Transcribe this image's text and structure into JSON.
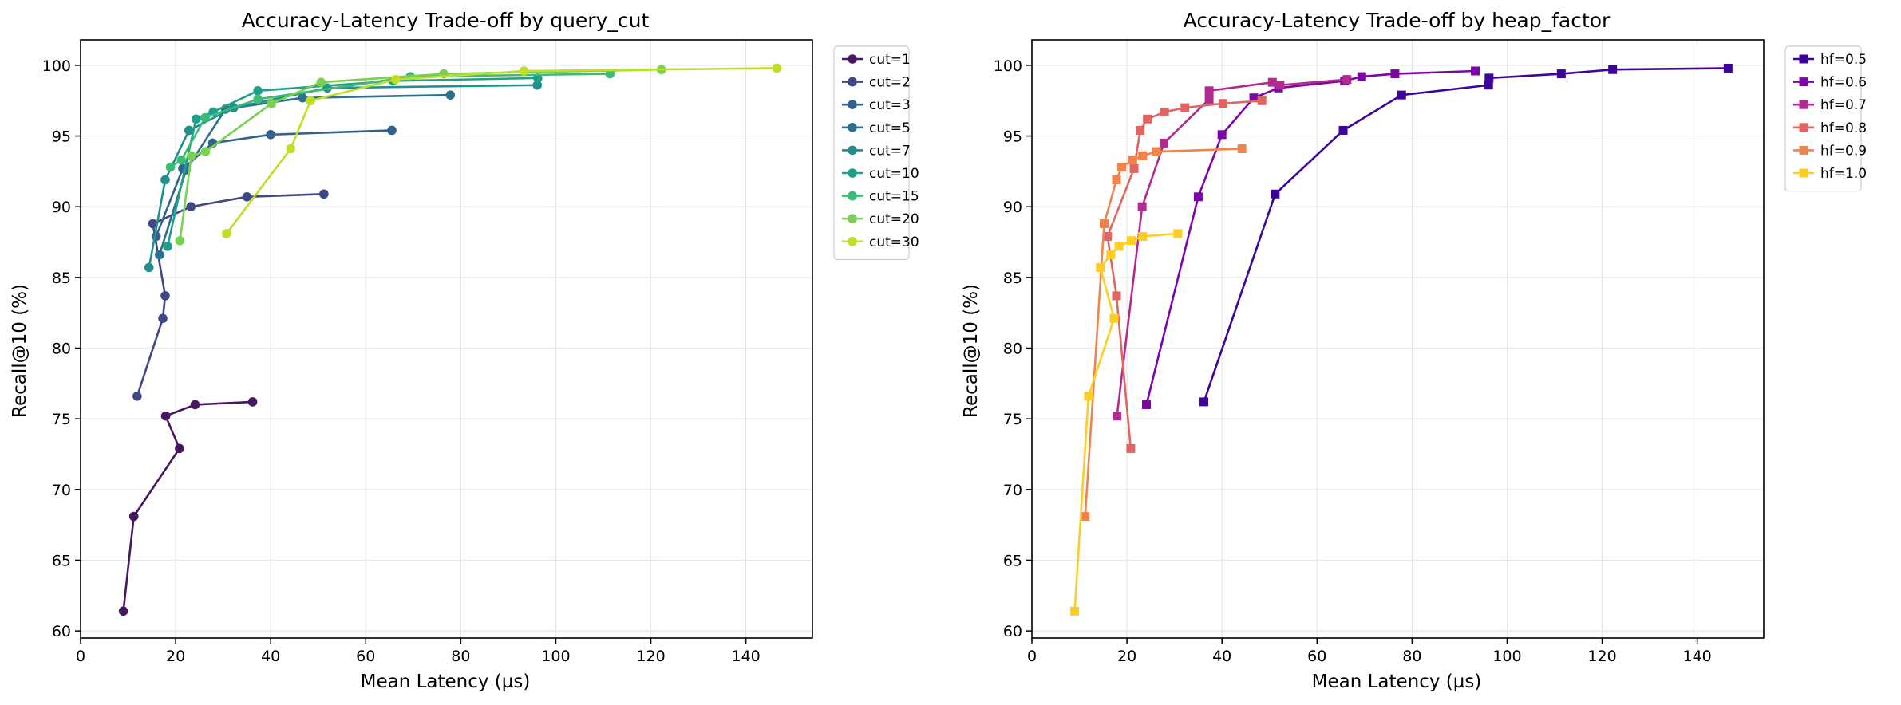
{
  "chart_data": [
    {
      "type": "line",
      "title": "Accuracy-Latency Trade-off by query_cut",
      "xlabel": "Mean Latency (µs)",
      "ylabel": "Recall@10 (%)",
      "xlim": [
        0,
        154
      ],
      "ylim": [
        59.5,
        101.8
      ],
      "xticks": [
        0,
        20,
        40,
        60,
        80,
        100,
        120,
        140
      ],
      "yticks": [
        60,
        65,
        70,
        75,
        80,
        85,
        90,
        95,
        100
      ],
      "grid": true,
      "legend_position": "outside-top-right",
      "marker": "circle",
      "series": [
        {
          "name": "cut=1",
          "color": "#46185f",
          "points": [
            [
              9,
              61.4
            ],
            [
              11.2,
              68.1
            ],
            [
              20.8,
              72.9
            ],
            [
              17.9,
              75.2
            ],
            [
              24.1,
              76.0
            ],
            [
              36.2,
              76.2
            ]
          ]
        },
        {
          "name": "cut=2",
          "color": "#404787",
          "points": [
            [
              11.9,
              76.6
            ],
            [
              17.3,
              82.1
            ],
            [
              17.8,
              83.7
            ],
            [
              15.2,
              88.8
            ],
            [
              23.2,
              90.0
            ],
            [
              35,
              90.7
            ],
            [
              51.2,
              90.9
            ]
          ]
        },
        {
          "name": "cut=3",
          "color": "#34608d",
          "points": [
            [
              15.9,
              87.9
            ],
            [
              21.5,
              92.7
            ],
            [
              27.8,
              94.5
            ],
            [
              40,
              95.1
            ],
            [
              65.5,
              95.4
            ]
          ]
        },
        {
          "name": "cut=5",
          "color": "#2d708e",
          "points": [
            [
              16.6,
              86.6
            ],
            [
              22.2,
              92.6
            ],
            [
              30.5,
              96.9
            ],
            [
              46.7,
              97.7
            ],
            [
              77.8,
              97.9
            ]
          ]
        },
        {
          "name": "cut=7",
          "color": "#21908d",
          "points": [
            [
              14.4,
              85.7
            ],
            [
              17.8,
              91.9
            ],
            [
              22.8,
              95.4
            ],
            [
              32.2,
              97.0
            ],
            [
              51.9,
              98.4
            ],
            [
              96.1,
              98.6
            ]
          ]
        },
        {
          "name": "cut=10",
          "color": "#1fa088",
          "points": [
            [
              18.3,
              87.2
            ],
            [
              24.3,
              96.2
            ],
            [
              27.9,
              96.7
            ],
            [
              37.3,
              98.2
            ],
            [
              65.8,
              98.9
            ],
            [
              96.2,
              99.1
            ]
          ]
        },
        {
          "name": "cut=15",
          "color": "#3bbb75",
          "points": [
            [
              18.9,
              92.8
            ],
            [
              21.2,
              93.3
            ],
            [
              26.2,
              96.3
            ],
            [
              37.3,
              97.6
            ],
            [
              69.4,
              99.2
            ],
            [
              111.4,
              99.4
            ]
          ]
        },
        {
          "name": "cut=20",
          "color": "#7ad151",
          "points": [
            [
              20.9,
              87.6
            ],
            [
              23.3,
              93.6
            ],
            [
              26.3,
              93.9
            ],
            [
              40.2,
              97.3
            ],
            [
              50.6,
              98.8
            ],
            [
              76.4,
              99.4
            ],
            [
              122.2,
              99.7
            ]
          ]
        },
        {
          "name": "cut=30",
          "color": "#bddf26",
          "points": [
            [
              30.7,
              88.1
            ],
            [
              44.2,
              94.1
            ],
            [
              48.4,
              97.5
            ],
            [
              66.3,
              99.0
            ],
            [
              93.3,
              99.6
            ],
            [
              146.5,
              99.8
            ]
          ]
        }
      ]
    },
    {
      "type": "line",
      "title": "Accuracy-Latency Trade-off by heap_factor",
      "xlabel": "Mean Latency (µs)",
      "ylabel": "Recall@10 (%)",
      "xlim": [
        0,
        154
      ],
      "ylim": [
        59.5,
        101.8
      ],
      "xticks": [
        0,
        20,
        40,
        60,
        80,
        100,
        120,
        140
      ],
      "yticks": [
        60,
        65,
        70,
        75,
        80,
        85,
        90,
        95,
        100
      ],
      "grid": true,
      "legend_position": "outside-top-right",
      "marker": "square",
      "series": [
        {
          "name": "hf=0.5",
          "color": "#3d049b",
          "points": [
            [
              36.2,
              76.2
            ],
            [
              51.2,
              90.9
            ],
            [
              65.5,
              95.4
            ],
            [
              77.8,
              97.9
            ],
            [
              96.1,
              98.6
            ],
            [
              96.2,
              99.1
            ],
            [
              111.4,
              99.4
            ],
            [
              122.2,
              99.7
            ],
            [
              146.5,
              99.8
            ]
          ]
        },
        {
          "name": "hf=0.6",
          "color": "#7e03a8",
          "points": [
            [
              24.1,
              76.0
            ],
            [
              35,
              90.7
            ],
            [
              40,
              95.1
            ],
            [
              46.7,
              97.7
            ],
            [
              51.9,
              98.4
            ],
            [
              65.8,
              98.9
            ],
            [
              69.4,
              99.2
            ],
            [
              76.4,
              99.4
            ],
            [
              93.3,
              99.6
            ]
          ]
        },
        {
          "name": "hf=0.7",
          "color": "#b12a90",
          "points": [
            [
              17.9,
              75.2
            ],
            [
              23.2,
              90.0
            ],
            [
              27.8,
              94.5
            ],
            [
              37.3,
              97.6
            ],
            [
              37.3,
              98.2
            ],
            [
              50.6,
              98.8
            ],
            [
              52.2,
              98.6
            ],
            [
              66.3,
              99.0
            ]
          ]
        },
        {
          "name": "hf=0.8",
          "color": "#e16462",
          "points": [
            [
              20.8,
              72.9
            ],
            [
              17.8,
              83.7
            ],
            [
              15.9,
              87.9
            ],
            [
              21.5,
              92.7
            ],
            [
              22.8,
              95.4
            ],
            [
              24.3,
              96.2
            ],
            [
              27.9,
              96.7
            ],
            [
              32.2,
              97.0
            ],
            [
              40.2,
              97.3
            ],
            [
              48.4,
              97.5
            ]
          ]
        },
        {
          "name": "hf=0.9",
          "color": "#f2844b",
          "points": [
            [
              11.2,
              68.1
            ],
            [
              15.2,
              88.8
            ],
            [
              17.8,
              91.9
            ],
            [
              18.9,
              92.8
            ],
            [
              21.2,
              93.3
            ],
            [
              23.3,
              93.6
            ],
            [
              26.2,
              93.9
            ],
            [
              44.2,
              94.1
            ]
          ]
        },
        {
          "name": "hf=1.0",
          "color": "#fccd25",
          "points": [
            [
              9,
              61.4
            ],
            [
              11.9,
              76.6
            ],
            [
              17.3,
              82.1
            ],
            [
              14.4,
              85.7
            ],
            [
              16.6,
              86.6
            ],
            [
              18.3,
              87.2
            ],
            [
              20.9,
              87.6
            ],
            [
              23.3,
              87.9
            ],
            [
              30.7,
              88.1
            ]
          ]
        }
      ]
    }
  ]
}
